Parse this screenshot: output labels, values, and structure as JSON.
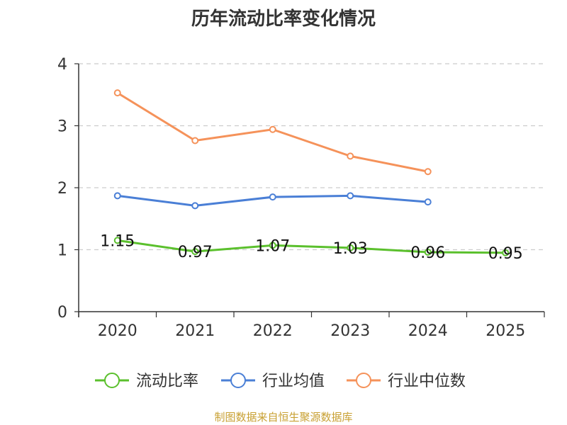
{
  "chart_data": {
    "type": "line",
    "title": "历年流动比率变化情况",
    "categories": [
      "2020",
      "2021",
      "2022",
      "2023",
      "2024",
      "2025"
    ],
    "ylim": [
      0,
      4
    ],
    "yticks": [
      0,
      1,
      2,
      3,
      4
    ],
    "grid": true,
    "legend_position": "bottom",
    "series": [
      {
        "name": "流动比率",
        "color": "#5bc02d",
        "values": [
          1.15,
          0.97,
          1.07,
          1.03,
          0.96,
          0.95
        ],
        "labels": [
          "1.15",
          "0.97",
          "1.07",
          "1.03",
          "0.96",
          "0.95"
        ],
        "show_labels": true
      },
      {
        "name": "行业均值",
        "color": "#4a7fd6",
        "values": [
          1.87,
          1.71,
          1.85,
          1.87,
          1.77,
          null
        ],
        "show_labels": false
      },
      {
        "name": "行业中位数",
        "color": "#f5925a",
        "values": [
          3.53,
          2.76,
          2.94,
          2.51,
          2.26,
          null
        ],
        "show_labels": false
      }
    ]
  },
  "source": "制图数据来自恒生聚源数据库"
}
